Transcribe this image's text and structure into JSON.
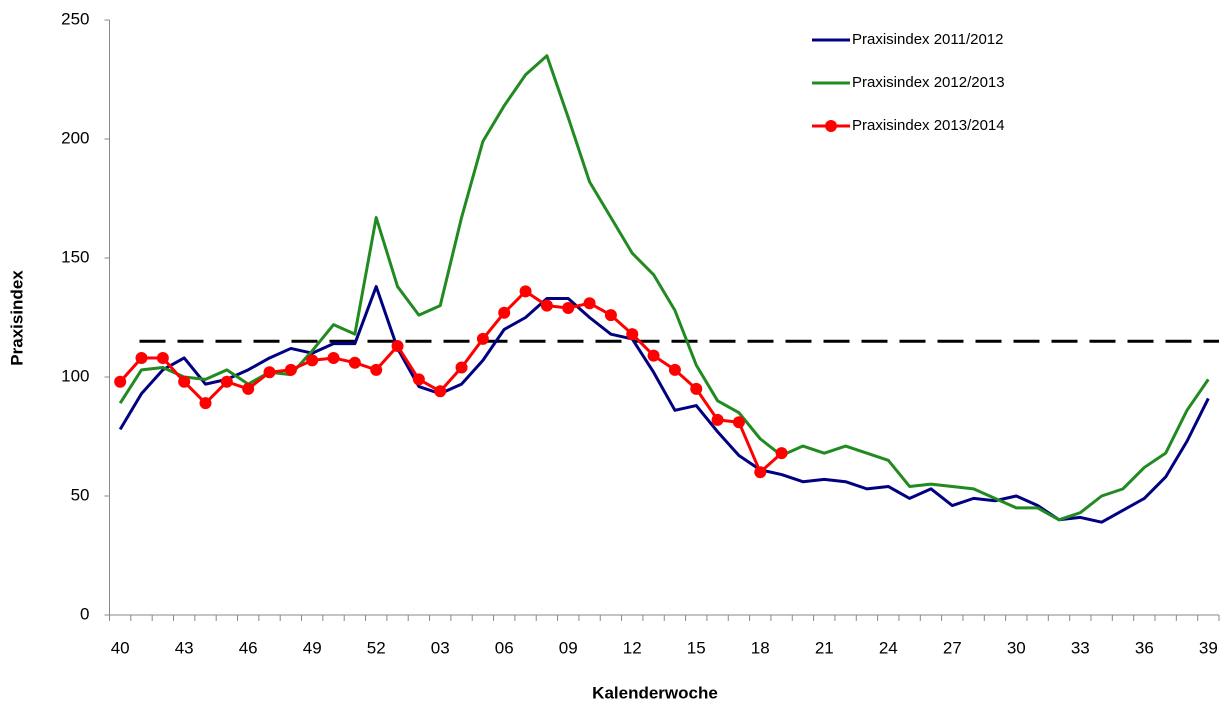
{
  "chart_data": {
    "type": "line",
    "x_label": "Kalenderwoche",
    "y_label": "Praxisindex",
    "categories": [
      "40",
      null,
      null,
      "43",
      null,
      null,
      "46",
      null,
      null,
      "49",
      null,
      null,
      "52",
      null,
      null,
      "03",
      null,
      null,
      "06",
      null,
      null,
      "09",
      null,
      null,
      "12",
      null,
      null,
      "15",
      null,
      null,
      "18",
      null,
      null,
      "21",
      null,
      null,
      "24",
      null,
      null,
      "27",
      null,
      null,
      "30",
      null,
      null,
      "33",
      null,
      null,
      "36",
      null,
      null,
      "39"
    ],
    "series": [
      {
        "name": "Praxisindex 2011/2012",
        "color": "#000080",
        "markers": false,
        "values": [
          78,
          93,
          103,
          108,
          97,
          99,
          103,
          108,
          112,
          110,
          114,
          114,
          138,
          112,
          96,
          93,
          97,
          107,
          120,
          125,
          133,
          133,
          125,
          118,
          116,
          102,
          86,
          88,
          77,
          67,
          61,
          59,
          56,
          57,
          56,
          53,
          54,
          49,
          53,
          46,
          49,
          48,
          50,
          46,
          40,
          41,
          39,
          44,
          49,
          58,
          73,
          91
        ]
      },
      {
        "name": "Praxisindex 2012/2013",
        "color": "#218a21",
        "markers": false,
        "values": [
          89,
          103,
          104,
          100,
          99,
          103,
          97,
          102,
          101,
          111,
          122,
          118,
          167,
          138,
          126,
          130,
          167,
          199,
          214,
          227,
          235,
          209,
          182,
          167,
          152,
          143,
          128,
          105,
          90,
          85,
          74,
          67,
          71,
          68,
          71,
          68,
          65,
          54,
          55,
          54,
          53,
          49,
          45,
          45,
          40,
          43,
          50,
          53,
          62,
          68,
          86,
          99
        ]
      },
      {
        "name": "Praxisindex 2013/2014",
        "color": "#ff0000",
        "markers": true,
        "values": [
          98,
          108,
          108,
          98,
          89,
          98,
          95,
          102,
          103,
          107,
          108,
          106,
          103,
          113,
          99,
          94,
          104,
          116,
          127,
          136,
          130,
          129,
          131,
          126,
          118,
          109,
          103,
          95,
          82,
          81,
          60,
          68,
          null,
          null,
          null,
          null,
          null,
          null,
          null,
          null,
          null,
          null,
          null,
          null,
          null,
          null,
          null,
          null,
          null,
          null,
          null,
          null
        ]
      }
    ],
    "threshold": 115,
    "ylim": [
      0,
      250
    ],
    "yticks": [
      0,
      50,
      100,
      150,
      200,
      250
    ],
    "grid": false,
    "legend": "top-right"
  }
}
